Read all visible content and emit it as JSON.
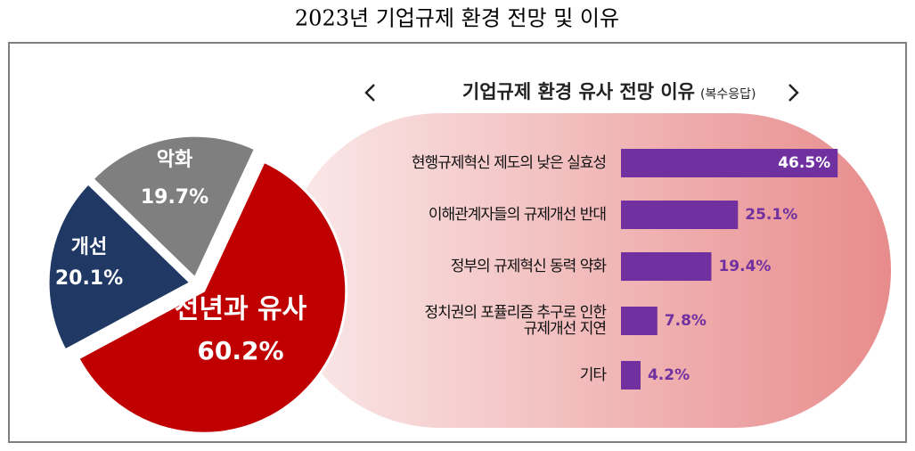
{
  "title": "2023년 기업규제 환경 전망 및 이유",
  "chart_data": [
    {
      "type": "pie",
      "categories": [
        "전년과 유사",
        "개선",
        "악화"
      ],
      "values": [
        60.2,
        20.1,
        19.7
      ],
      "value_labels": [
        "60.2%",
        "20.1%",
        "19.7%"
      ],
      "colors": [
        "#c00000",
        "#1f3864",
        "#7f7f7f"
      ]
    },
    {
      "type": "bar",
      "orientation": "horizontal",
      "title": "기업규제 환경 유사 전망 이유",
      "subtitle": "(복수응답)",
      "categories": [
        "현행규제혁신 제도의 낮은 실효성",
        "이해관계자들의 규제개선 반대",
        "정부의 규제혁신 동력 약화",
        "정치권의 포퓰리즘 추구로 인한\n규제개선 지연",
        "기타"
      ],
      "values": [
        46.5,
        25.1,
        19.4,
        7.8,
        4.2
      ],
      "value_labels": [
        "46.5%",
        "25.1%",
        "19.4%",
        "7.8%",
        "4.2%"
      ],
      "color": "#7030a0"
    }
  ]
}
